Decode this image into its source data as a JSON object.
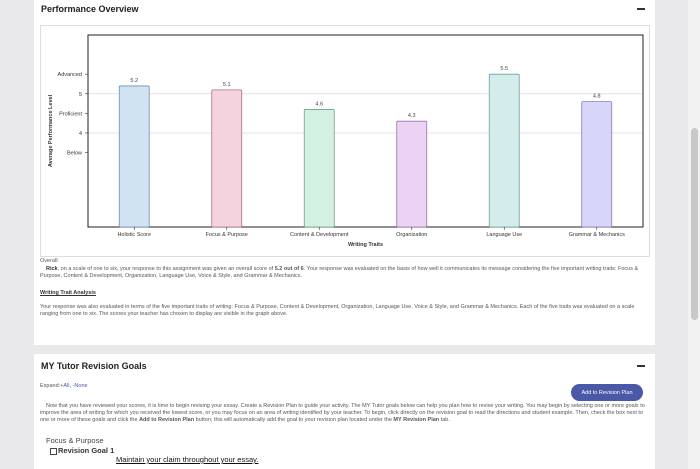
{
  "performance": {
    "title": "Performance Overview",
    "overall_label": "Overall:",
    "overall_name": "Rick",
    "overall_text_1": ", on a scale of one to six, your response to this assignment was given an overall score of ",
    "overall_score": "5.2 out of 6",
    "overall_text_2": ". Your response was evaluated on the basis of how well it communicates its message considering the five important writing traits: Focus & Purpose, Content & Development, Organization, Language Use, Voice & Style, and Grammar & Mechanics.",
    "trait_heading": "Writing Trait Analysis",
    "trait_text": "Your response was also evaluated in terms of the five important traits of writing: Focus & Purpose, Content & Development, Organization, Language Use, Voice & Style, and Grammar & Mechanics. Each of the five traits was evaluated on a scale ranging from one to six. The scores your teacher has chosen to display are visible in the graph above."
  },
  "chart_data": {
    "type": "bar",
    "categories": [
      "Holistic Score",
      "Focus & Purpose",
      "Content & Development",
      "Organization",
      "Language Use",
      "Grammar & Mechanics"
    ],
    "values": [
      5.2,
      5.1,
      4.6,
      4.3,
      5.5,
      4.8
    ],
    "value_labels": [
      "5.2",
      "5.1",
      "4.6",
      "4.3",
      "5.5",
      "4.8"
    ],
    "colors": [
      "#cfe3f3",
      "#f5d3de",
      "#d3f0e0",
      "#ecd3f3",
      "#d3ecec",
      "#d7d5f8"
    ],
    "stroke_colors": [
      "#6f8fb0",
      "#b07080",
      "#6fa08a",
      "#9c70b0",
      "#6fa0a0",
      "#7f7ac0"
    ],
    "xlabel": "Writing Traits",
    "ylabel": "Average Performance Level",
    "ylim": [
      1.6,
      6.5
    ],
    "yticks": [
      {
        "label": "Advanced",
        "value": 5.5
      },
      {
        "label": "5",
        "value": 5.0
      },
      {
        "label": "Proficient",
        "value": 4.5
      },
      {
        "label": "4",
        "value": 4.0
      },
      {
        "label": "Below",
        "value": 3.5
      }
    ],
    "grid": "horizontal at 5 and 4"
  },
  "goals": {
    "title": "MY Tutor Revision Goals",
    "expand_label": "Expand:",
    "expand_all": "+All",
    "expand_none": "-None",
    "add_button": "Add to Revision Plan",
    "intro_1": "Now that you have reviewed your scores, it is time to begin revising your essay. Create a Revision Plan to guide your activity. The MY Tutor goals below can help you plan how to revise your writing. You may begin by selecting one or more goals to improve the area of writing for which you received the lowest score, or you may focus on an area of writing identified by your teacher. To begin, click directly on the revision goal to read the directions and student example. Then, check the box next to one or more of these goals and click the ",
    "intro_bold_1": "Add to Revision Plan",
    "intro_2": " button; this will automatically add the goal to your revision plan located under the ",
    "intro_bold_2": "MY Revision Plan",
    "intro_3": " tab.",
    "section_label": "Focus & Purpose",
    "goal_label": "Revision Goal 1",
    "goal_link": "Maintain your claim throughout your essay."
  },
  "icons": {
    "collapse": "minus-icon"
  }
}
